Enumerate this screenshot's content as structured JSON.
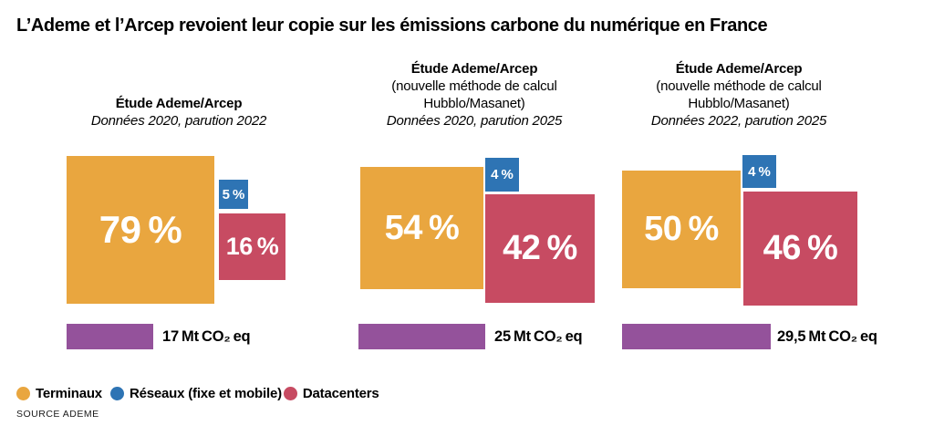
{
  "title": "L’Ademe et l’Arcep revoient leur copie sur les émissions carbone du numérique en France",
  "source": "SOURCE ADEME",
  "colors": {
    "terminaux": "#E9A63F",
    "reseaux": "#2E74B4",
    "datacenters": "#C74B62",
    "total_bar": "#94529B",
    "text": "#000000",
    "value_text": "#FFFFFF"
  },
  "legend": {
    "items": [
      {
        "label": "Terminaux",
        "color": "#E9A63F"
      },
      {
        "label": "Réseaux (fixe et mobile)",
        "color": "#2E74B4"
      },
      {
        "label": "Datacenters",
        "color": "#C74B62"
      }
    ]
  },
  "chart_data": {
    "type": "proportional-area-squares",
    "legend_position": "bottom",
    "categories": [
      "Terminaux",
      "Réseaux (fixe et mobile)",
      "Datacenters"
    ],
    "panels": [
      {
        "header": {
          "title": "Étude Ademe/Arcep",
          "note": "Données 2020, parution 2022"
        },
        "squares": {
          "terminaux": {
            "value": 79,
            "label": "79 %"
          },
          "reseaux": {
            "value": 5,
            "label": "5 %"
          },
          "datacenters": {
            "value": 16,
            "label": "16 %"
          }
        },
        "total": {
          "value_mt": 17,
          "label": "17 Mt CO₂ eq"
        }
      },
      {
        "header": {
          "title": "Étude Ademe/Arcep",
          "line2": "(nouvelle méthode de calcul",
          "line3": "Hubblo/Masanet)",
          "note": "Données 2020, parution 2025"
        },
        "squares": {
          "terminaux": {
            "value": 54,
            "label": "54 %"
          },
          "reseaux": {
            "value": 4,
            "label": "4 %"
          },
          "datacenters": {
            "value": 42,
            "label": "42 %"
          }
        },
        "total": {
          "value_mt": 25,
          "label": "25 Mt CO₂ eq"
        }
      },
      {
        "header": {
          "title": "Étude Ademe/Arcep",
          "line2": "(nouvelle méthode de calcul",
          "line3": "Hubblo/Masanet)",
          "note": "Données 2022, parution 2025"
        },
        "squares": {
          "terminaux": {
            "value": 50,
            "label": "50 %"
          },
          "reseaux": {
            "value": 4,
            "label": "4 %"
          },
          "datacenters": {
            "value": 46,
            "label": "46 %"
          }
        },
        "total": {
          "value_mt": 29.5,
          "label": "29,5 Mt CO₂ eq"
        }
      }
    ]
  }
}
